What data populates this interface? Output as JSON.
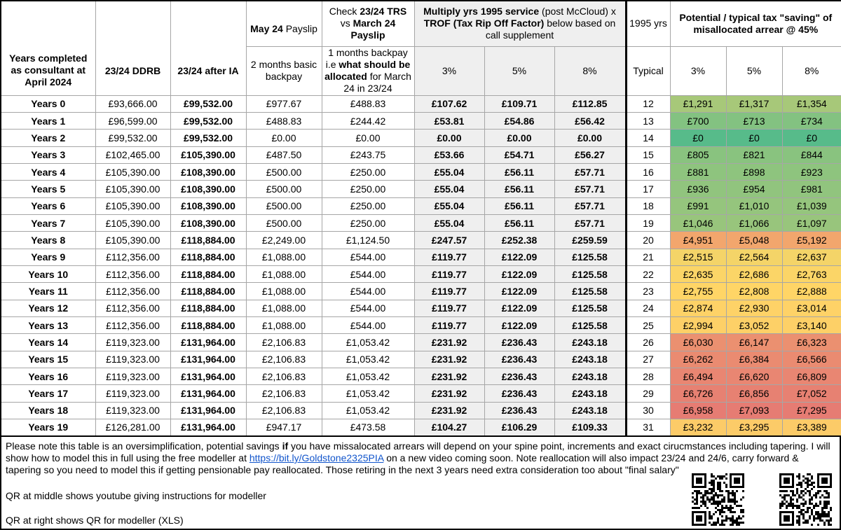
{
  "header": {
    "payslip": [
      "May 24",
      "Payslip"
    ],
    "check": [
      "Check",
      "23/24 TRS",
      "vs",
      "March 24 Payslip"
    ],
    "multiply": [
      "Multiply yrs 1995 service",
      "(post McCloud) x",
      "TROF (Tax Rip Off Factor)",
      "below based on call supplement"
    ],
    "yrs1995": "1995 yrs",
    "saving": "Potential / typical tax \"saving\" of misallocated arrear @ 45%",
    "years_completed": "Years completed as consultant at April 2024",
    "ddrb": "23/24 DDRB",
    "after_ia": "23/24 after IA",
    "backpay2": "2 months basic backpay",
    "backpay1": [
      "1 months backpay i.e",
      "what should be allocated",
      "for March 24 in 23/24"
    ],
    "multiply_pcts": [
      "3%",
      "5%",
      "8%"
    ],
    "typical": "Typical",
    "saving_pcts": [
      "3%",
      "5%",
      "8%"
    ]
  },
  "rows": [
    [
      "Years 0",
      "£93,666.00",
      "£99,532.00",
      "£977.67",
      "£488.83",
      "£107.62",
      "£109.71",
      "£112.85",
      "12",
      "£1,291",
      "£1,317",
      "£1,354"
    ],
    [
      "Years 1",
      "£96,599.00",
      "£99,532.00",
      "£488.83",
      "£244.42",
      "£53.81",
      "£54.86",
      "£56.42",
      "13",
      "£700",
      "£713",
      "£734"
    ],
    [
      "Years 2",
      "£99,532.00",
      "£99,532.00",
      "£0.00",
      "£0.00",
      "£0.00",
      "£0.00",
      "£0.00",
      "14",
      "£0",
      "£0",
      "£0"
    ],
    [
      "Years 3",
      "£102,465.00",
      "£105,390.00",
      "£487.50",
      "£243.75",
      "£53.66",
      "£54.71",
      "£56.27",
      "15",
      "£805",
      "£821",
      "£844"
    ],
    [
      "Years 4",
      "£105,390.00",
      "£108,390.00",
      "£500.00",
      "£250.00",
      "£55.04",
      "£56.11",
      "£57.71",
      "16",
      "£881",
      "£898",
      "£923"
    ],
    [
      "Years 5",
      "£105,390.00",
      "£108,390.00",
      "£500.00",
      "£250.00",
      "£55.04",
      "£56.11",
      "£57.71",
      "17",
      "£936",
      "£954",
      "£981"
    ],
    [
      "Years 6",
      "£105,390.00",
      "£108,390.00",
      "£500.00",
      "£250.00",
      "£55.04",
      "£56.11",
      "£57.71",
      "18",
      "£991",
      "£1,010",
      "£1,039"
    ],
    [
      "Years 7",
      "£105,390.00",
      "£108,390.00",
      "£500.00",
      "£250.00",
      "£55.04",
      "£56.11",
      "£57.71",
      "19",
      "£1,046",
      "£1,066",
      "£1,097"
    ],
    [
      "Years 8",
      "£105,390.00",
      "£118,884.00",
      "£2,249.00",
      "£1,124.50",
      "£247.57",
      "£252.38",
      "£259.59",
      "20",
      "£4,951",
      "£5,048",
      "£5,192"
    ],
    [
      "Years 9",
      "£112,356.00",
      "£118,884.00",
      "£1,088.00",
      "£544.00",
      "£119.77",
      "£122.09",
      "£125.58",
      "21",
      "£2,515",
      "£2,564",
      "£2,637"
    ],
    [
      "Years 10",
      "£112,356.00",
      "£118,884.00",
      "£1,088.00",
      "£544.00",
      "£119.77",
      "£122.09",
      "£125.58",
      "22",
      "£2,635",
      "£2,686",
      "£2,763"
    ],
    [
      "Years 11",
      "£112,356.00",
      "£118,884.00",
      "£1,088.00",
      "£544.00",
      "£119.77",
      "£122.09",
      "£125.58",
      "23",
      "£2,755",
      "£2,808",
      "£2,888"
    ],
    [
      "Years 12",
      "£112,356.00",
      "£118,884.00",
      "£1,088.00",
      "£544.00",
      "£119.77",
      "£122.09",
      "£125.58",
      "24",
      "£2,874",
      "£2,930",
      "£3,014"
    ],
    [
      "Years 13",
      "£112,356.00",
      "£118,884.00",
      "£1,088.00",
      "£544.00",
      "£119.77",
      "£122.09",
      "£125.58",
      "25",
      "£2,994",
      "£3,052",
      "£3,140"
    ],
    [
      "Years 14",
      "£119,323.00",
      "£131,964.00",
      "£2,106.83",
      "£1,053.42",
      "£231.92",
      "£236.43",
      "£243.18",
      "26",
      "£6,030",
      "£6,147",
      "£6,323"
    ],
    [
      "Years 15",
      "£119,323.00",
      "£131,964.00",
      "£2,106.83",
      "£1,053.42",
      "£231.92",
      "£236.43",
      "£243.18",
      "27",
      "£6,262",
      "£6,384",
      "£6,566"
    ],
    [
      "Years 16",
      "£119,323.00",
      "£131,964.00",
      "£2,106.83",
      "£1,053.42",
      "£231.92",
      "£236.43",
      "£243.18",
      "28",
      "£6,494",
      "£6,620",
      "£6,809"
    ],
    [
      "Years 17",
      "£119,323.00",
      "£131,964.00",
      "£2,106.83",
      "£1,053.42",
      "£231.92",
      "£236.43",
      "£243.18",
      "29",
      "£6,726",
      "£6,856",
      "£7,052"
    ],
    [
      "Years 18",
      "£119,323.00",
      "£131,964.00",
      "£2,106.83",
      "£1,053.42",
      "£231.92",
      "£236.43",
      "£243.18",
      "30",
      "£6,958",
      "£7,093",
      "£7,295"
    ],
    [
      "Years 19",
      "£126,281.00",
      "£131,964.00",
      "£947.17",
      "£473.58",
      "£104.27",
      "£106.29",
      "£109.33",
      "31",
      "£3,232",
      "£3,295",
      "£3,389"
    ]
  ],
  "row_colors": [
    "#a7c879",
    "#83c281",
    "#57bb8a",
    "#89c37f",
    "#8ec47e",
    "#91c47e",
    "#95c57d",
    "#98c57c",
    "#f2a66d",
    "#f4d468",
    "#fbd567",
    "#ffd566",
    "#fed267",
    "#fdd067",
    "#eb9070",
    "#ea8b71",
    "#e98672",
    "#e78172",
    "#e67c73",
    "#fccb68"
  ],
  "footer": {
    "note": [
      "Please note this table is an oversimplification, potential savings",
      "if",
      "you have missalocated arrears will depend on your spine point, increments and exact cirucmstances  including tapering. I will show how to model this in full using the free modeller at",
      "https://bit.ly/Goldstone2325PIA",
      "on a new video coming soon. Note reallocation will also impact 23/24 and 24/6, carry forward & tapering so you need to model this if getting pensionable pay reallocated. Those retiring in the next 3 years need extra consideration too about \"final salary\""
    ],
    "qr_middle": "QR at middle shows youtube giving instructions for modeller",
    "qr_right": "QR at right shows QR for modeller (XLS)"
  }
}
